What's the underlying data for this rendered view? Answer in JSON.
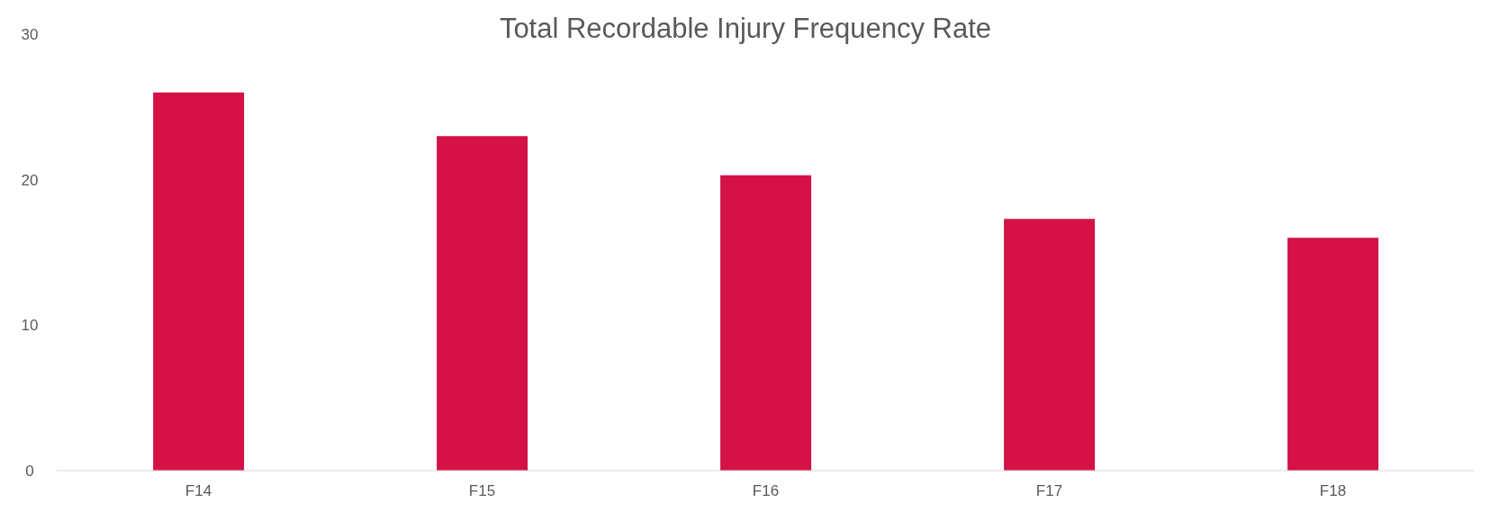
{
  "chart_data": {
    "type": "bar",
    "title": "Total Recordable Injury Frequency Rate",
    "categories": [
      "F14",
      "F15",
      "F16",
      "F17",
      "F18"
    ],
    "values": [
      26.0,
      23.0,
      20.3,
      17.3,
      16.0
    ],
    "color": "#d41245",
    "ylim": [
      0,
      30
    ],
    "yticks": [
      0,
      10,
      20,
      30
    ],
    "grid": false
  }
}
